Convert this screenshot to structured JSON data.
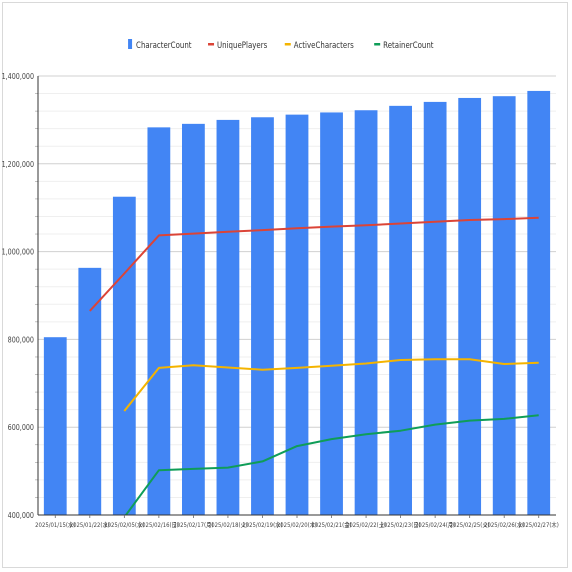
{
  "chart_data": {
    "type": "bar",
    "title": "",
    "xlabel": "",
    "ylabel": "",
    "legend_position": "top",
    "grid": true,
    "ylim": [
      400000,
      1400000
    ],
    "yticks": [
      400000,
      600000,
      800000,
      1000000,
      1200000,
      1400000
    ],
    "ytick_labels": [
      "400,000",
      "600,000",
      "800,000",
      "1,000,000",
      "1,200,000",
      "1,400,000"
    ],
    "categories": [
      "2025/01/15(水)",
      "2025/01/22(水)",
      "2025/02/05(水)",
      "2025/02/16(日)",
      "2025/02/17(月)",
      "2025/02/18(火)",
      "2025/02/19(水)",
      "2025/02/20(木)",
      "2025/02/21(金)",
      "2025/02/22(土)",
      "2025/02/23(日)",
      "2025/02/24(月)",
      "2025/02/25(火)",
      "2025/02/26(水)",
      "2025/02/27(木)"
    ],
    "series": [
      {
        "name": "CharacterCount",
        "kind": "bar",
        "color": "#4285f4",
        "values": [
          805000,
          963000,
          1125000,
          1283000,
          1291000,
          1300000,
          1306000,
          1312000,
          1317000,
          1322000,
          1332000,
          1341000,
          1350000,
          1354000,
          1366000
        ]
      },
      {
        "name": "UniquePlayers",
        "kind": "line",
        "color": "#db4437",
        "values": [
          null,
          865000,
          950000,
          1037000,
          1041000,
          1045000,
          1049000,
          1053000,
          1057000,
          1060000,
          1064000,
          1068000,
          1072000,
          1074000,
          1077000
        ]
      },
      {
        "name": "ActiveCharacters",
        "kind": "line",
        "color": "#f4b400",
        "values": [
          null,
          null,
          637000,
          735000,
          741000,
          736000,
          731000,
          735000,
          740000,
          745000,
          753000,
          755000,
          755000,
          744000,
          747000
        ]
      },
      {
        "name": "RetainerCount",
        "kind": "line",
        "color": "#0f9d58",
        "values": [
          null,
          null,
          395000,
          502000,
          505000,
          508000,
          522000,
          557000,
          573000,
          584000,
          592000,
          606000,
          615000,
          619000,
          627000
        ]
      }
    ]
  }
}
